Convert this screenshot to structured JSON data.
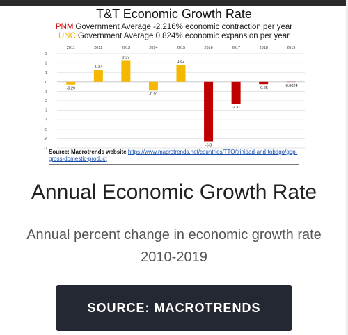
{
  "chart_data": {
    "type": "bar",
    "title": "T&T Economic Growth Rate",
    "subtitle_lines": [
      {
        "party": "PNM",
        "party_color": "#d40000",
        "text": "Government Average -2.216% economic contraction per year"
      },
      {
        "party": "UNC",
        "party_color": "#f5b800",
        "text": "Government Average 0.824% economic expansion per year"
      }
    ],
    "categories": [
      "2011",
      "2012",
      "2013",
      "2014",
      "2015",
      "2016",
      "2017",
      "2018",
      "2019"
    ],
    "values": [
      -0.29,
      1.27,
      2.23,
      -0.91,
      1.82,
      -6.3,
      -2.31,
      -0.25,
      -0.0024
    ],
    "data_labels": [
      "-0.29",
      "1.27",
      "2.23",
      "-0.91",
      "1.82",
      "-6.3",
      "-2.31",
      "-0.25",
      "-0.0024"
    ],
    "bar_colors": [
      "#f5b800",
      "#f5b800",
      "#f5b800",
      "#f5b800",
      "#f5b800",
      "#c00000",
      "#c00000",
      "#c00000",
      "#c00000"
    ],
    "ylim": [
      -7,
      3
    ],
    "yticks": [
      3,
      2,
      1,
      0,
      -1,
      -2,
      -3,
      -4,
      -5,
      -6,
      -7
    ],
    "xlabel": "",
    "ylabel": "",
    "grid": true,
    "source_label": "Source: Macrotrends website",
    "source_url": "https://www.macrotrends.net/countries/TTO/trinidad-and-tobago/gdp-gross-domestic-product"
  },
  "page": {
    "heading": "Annual Economic Growth Rate",
    "description": "Annual percent change in economic growth rate 2010-2019",
    "button_label": "SOURCE: MACROTRENDS"
  }
}
